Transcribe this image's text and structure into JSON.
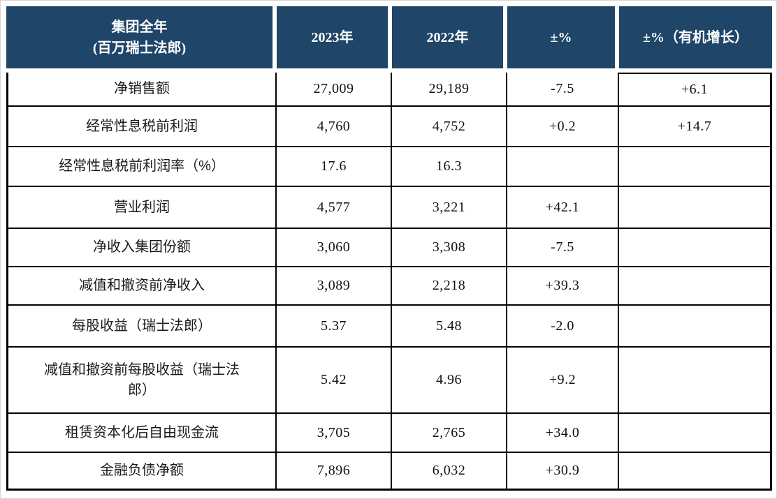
{
  "colors": {
    "header_bg": "#1f4568",
    "header_text": "#ffffff",
    "body_border": "#000000",
    "page_bg": "#ffffff"
  },
  "table": {
    "header": {
      "group_title": "集团全年",
      "group_subtitle": "(百万瑞士法郎)",
      "col_2023": "2023年",
      "col_2022": "2022年",
      "col_change": "±%",
      "col_organic": "±%（有机增长）"
    },
    "rows": [
      {
        "label": "净销售额",
        "v2023": "27,009",
        "v2022": "29,189",
        "chg": "-7.5",
        "org": "+6.1"
      },
      {
        "label": "经常性息税前利润",
        "v2023": "4,760",
        "v2022": "4,752",
        "chg": "+0.2",
        "org": "+14.7"
      },
      {
        "label": "经常性息税前利润率（%）",
        "v2023": "17.6",
        "v2022": "16.3",
        "chg": "",
        "org": ""
      },
      {
        "label": "营业利润",
        "v2023": "4,577",
        "v2022": "3,221",
        "chg": "+42.1",
        "org": ""
      },
      {
        "label": "净收入集团份额",
        "v2023": "3,060",
        "v2022": "3,308",
        "chg": "-7.5",
        "org": ""
      },
      {
        "label": "减值和撤资前净收入",
        "v2023": "3,089",
        "v2022": "2,218",
        "chg": "+39.3",
        "org": ""
      },
      {
        "label": "每股收益（瑞士法郎）",
        "v2023": "5.37",
        "v2022": "5.48",
        "chg": "-2.0",
        "org": ""
      },
      {
        "label": "减值和撤资前每股收益（瑞士法郎）",
        "v2023": "5.42",
        "v2022": "4.96",
        "chg": "+9.2",
        "org": ""
      },
      {
        "label": "租赁资本化后自由现金流",
        "v2023": "3,705",
        "v2022": "2,765",
        "chg": "+34.0",
        "org": ""
      },
      {
        "label": "金融负债净额",
        "v2023": "7,896",
        "v2022": "6,032",
        "chg": "+30.9",
        "org": ""
      }
    ]
  }
}
